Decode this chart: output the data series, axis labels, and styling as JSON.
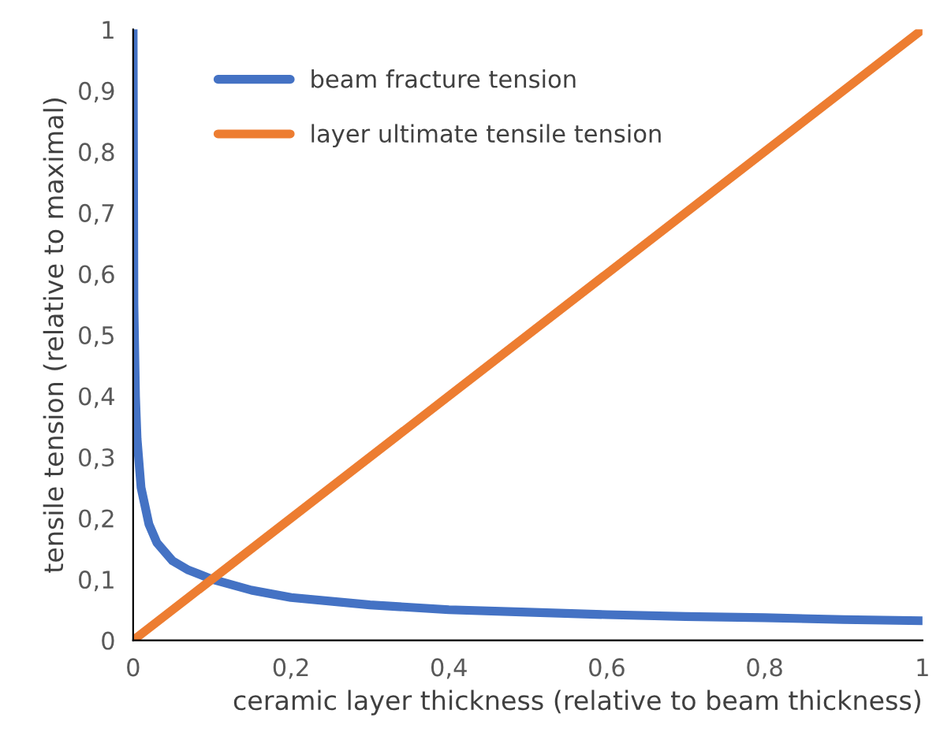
{
  "chart_data": {
    "type": "line",
    "xlabel": "ceramic layer thickness (relative to beam thickness)",
    "ylabel": "tensile tension (relative to maximal)",
    "xlim": [
      0,
      1
    ],
    "ylim": [
      0,
      1
    ],
    "xticks": [
      0,
      {
        "value": 0.2,
        "label": "0,2"
      },
      {
        "value": 0.4,
        "label": "0,4"
      },
      {
        "value": 0.6,
        "label": "0,6"
      },
      {
        "value": 0.8,
        "label": "0,8"
      },
      1
    ],
    "yticks": [
      0,
      {
        "value": 0.1,
        "label": "0,1"
      },
      {
        "value": 0.2,
        "label": "0,2"
      },
      {
        "value": 0.3,
        "label": "0,3"
      },
      {
        "value": 0.4,
        "label": "0,4"
      },
      {
        "value": 0.5,
        "label": "0,5"
      },
      {
        "value": 0.6,
        "label": "0,6"
      },
      {
        "value": 0.7,
        "label": "0,7"
      },
      {
        "value": 0.8,
        "label": "0,8"
      },
      {
        "value": 0.9,
        "label": "0,9"
      },
      1
    ],
    "grid": false,
    "legend": "top left",
    "marker": "none",
    "line_style": "solid",
    "series": [
      {
        "name": "beam fracture tension",
        "color": "#4472c4",
        "x": [
          0,
          0.001,
          0.003,
          0.005,
          0.01,
          0.02,
          0.03,
          0.05,
          0.07,
          0.1,
          0.15,
          0.2,
          0.3,
          0.4,
          0.5,
          0.6,
          0.7,
          0.8,
          0.9,
          1
        ],
        "values": [
          1,
          0.55,
          0.4,
          0.33,
          0.25,
          0.19,
          0.16,
          0.13,
          0.115,
          0.1,
          0.082,
          0.07,
          0.058,
          0.05,
          0.046,
          0.042,
          0.039,
          0.037,
          0.034,
          0.032
        ]
      },
      {
        "name": "layer ultimate tensile tension",
        "color": "#ed7d31",
        "x": [
          0,
          1
        ],
        "values": [
          0,
          1
        ]
      }
    ]
  }
}
